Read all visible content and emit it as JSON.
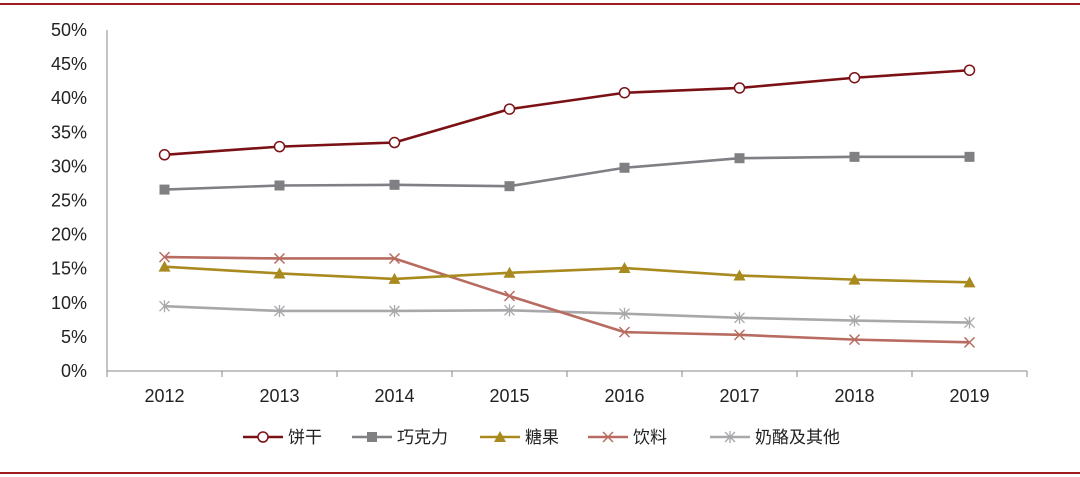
{
  "chart_data": {
    "type": "line",
    "title": "",
    "xlabel": "",
    "ylabel": "",
    "categories": [
      "2012",
      "2013",
      "2014",
      "2015",
      "2016",
      "2017",
      "2018",
      "2019"
    ],
    "ylim": [
      0,
      50
    ],
    "yticks": [
      0,
      5,
      10,
      15,
      20,
      25,
      30,
      35,
      40,
      45,
      50
    ],
    "ytick_labels": [
      "0%",
      "5%",
      "10%",
      "15%",
      "20%",
      "25%",
      "30%",
      "35%",
      "40%",
      "45%",
      "50%"
    ],
    "grid": false,
    "legend_position": "bottom",
    "series": [
      {
        "name": "饼干",
        "color": "#7b1114",
        "marker": "open-circle",
        "values": [
          31.7,
          32.9,
          33.5,
          38.4,
          40.8,
          41.5,
          43.0,
          44.1
        ]
      },
      {
        "name": "巧克力",
        "color": "#7f7f84",
        "marker": "square",
        "values": [
          26.6,
          27.2,
          27.3,
          27.1,
          29.8,
          31.2,
          31.4,
          31.4
        ]
      },
      {
        "name": "糖果",
        "color": "#a88a1f",
        "marker": "triangle",
        "values": [
          15.3,
          14.3,
          13.5,
          14.4,
          15.1,
          14.0,
          13.4,
          13.0
        ]
      },
      {
        "name": "饮料",
        "color": "#b86b60",
        "marker": "x",
        "values": [
          16.7,
          16.5,
          16.5,
          11.0,
          5.7,
          5.3,
          4.6,
          4.2
        ]
      },
      {
        "name": "奶酪及其他",
        "color": "#a8a8ab",
        "marker": "asterisk",
        "values": [
          9.5,
          8.8,
          8.8,
          8.9,
          8.4,
          7.8,
          7.4,
          7.1
        ]
      }
    ]
  },
  "frame": {
    "accent_color": "#9e1b20"
  }
}
